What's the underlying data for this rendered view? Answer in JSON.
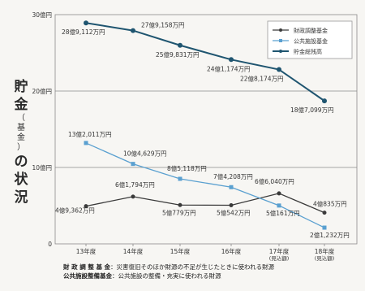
{
  "side_title": [
    "貯",
    "金",
    "（",
    "基",
    "金",
    "）",
    "の",
    "状",
    "況"
  ],
  "chart_data": {
    "type": "line",
    "categories": [
      "13年度",
      "14年度",
      "15年度",
      "16年度",
      "17年度\n(見込額)",
      "18年度\n(見込額)"
    ],
    "y_ticks": [
      "30億円",
      "20億円",
      "10億円",
      "0"
    ],
    "ylim": [
      0,
      30
    ],
    "grid": true,
    "legend_position": "top-right",
    "series": [
      {
        "name": "財政調整基金",
        "color": "#3a3a3a",
        "marker": "circle",
        "values": [
          4.9362,
          6.1794,
          5.0779,
          5.0542,
          6.604,
          4.0835
        ],
        "labels": [
          "4億9,362万円",
          "6億1,794万円",
          "5億779万円",
          "5億542万円",
          "6億6,040万円",
          "4億835万円"
        ]
      },
      {
        "name": "公共施設基金",
        "color": "#5aa0d0",
        "marker": "square",
        "values": [
          13.2011,
          10.4629,
          8.5118,
          7.4208,
          5.0161,
          2.1232
        ],
        "labels": [
          "13億2,011万円",
          "10億4,629万円",
          "8億5,118万円",
          "7億4,208万円",
          "5億161万円",
          "2億1,232万円"
        ]
      },
      {
        "name": "貯金総残高",
        "color": "#1f5570",
        "marker": "circle",
        "values": [
          28.9112,
          27.9158,
          25.9831,
          24.1174,
          22.8174,
          18.7099
        ],
        "labels": [
          "28億9,112万円",
          "27億9,158万円",
          "25億9,831万円",
          "24億1,174万円",
          "22億8,174万円",
          "18億7,099万円"
        ]
      }
    ]
  },
  "footnotes": [
    {
      "term": "財 政 調 整 基 金",
      "desc": "：災害復旧そのほか財源の不足が生じたときに使われる財源"
    },
    {
      "term": "公共施設整備基金",
      "desc": "：公共施設の整備・充実に使われる財源"
    }
  ]
}
